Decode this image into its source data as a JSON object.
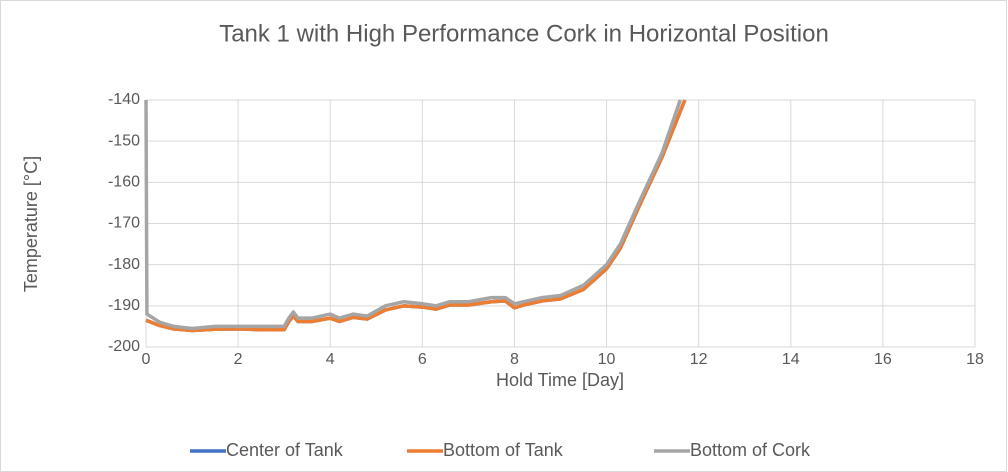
{
  "chart_data": {
    "type": "line",
    "title": "Tank 1 with High Performance Cork in Horizontal Position",
    "x_label": "Hold Time [Day]",
    "y_label": "Temperature [°C]",
    "xlim": [
      0,
      18
    ],
    "xticks": [
      0,
      2,
      4,
      6,
      8,
      10,
      12,
      14,
      16,
      18
    ],
    "ylim": [
      -200,
      -140
    ],
    "yticks": [
      -200,
      -190,
      -180,
      -170,
      -160,
      -150,
      -140
    ],
    "grid": true,
    "legend": "bottom",
    "series": [
      {
        "name": "Center of Tank",
        "color": "#4472c4",
        "x": [
          0,
          0.3,
          0.6,
          1,
          1.5,
          2,
          2.5,
          3,
          3.1,
          3.2,
          3.3,
          3.6,
          4,
          4.2,
          4.5,
          4.8,
          5.2,
          5.6,
          6,
          6.3,
          6.6,
          7,
          7.5,
          7.8,
          8,
          8.2,
          8.6,
          9,
          9.5,
          10,
          10.3,
          10.7,
          11.2,
          11.7
        ],
        "values": [
          -193.5,
          -194.8,
          -195.6,
          -196,
          -195.7,
          -195.6,
          -195.8,
          -195.8,
          -193.8,
          -192.5,
          -193.8,
          -193.8,
          -193,
          -193.8,
          -192.8,
          -193.2,
          -191,
          -190,
          -190.3,
          -190.8,
          -189.8,
          -189.8,
          -189,
          -188.8,
          -190.5,
          -189.8,
          -188.8,
          -188.3,
          -186,
          -181,
          -176,
          -166,
          -154,
          -140
        ]
      },
      {
        "name": "Bottom of Tank",
        "color": "#ed7d31",
        "x": [
          0,
          0.3,
          0.6,
          1,
          1.5,
          2,
          2.5,
          3,
          3.1,
          3.2,
          3.3,
          3.6,
          4,
          4.2,
          4.5,
          4.8,
          5.2,
          5.6,
          6,
          6.3,
          6.6,
          7,
          7.5,
          7.8,
          8,
          8.2,
          8.6,
          9,
          9.5,
          10,
          10.3,
          10.7,
          11.2,
          11.7
        ],
        "values": [
          -193.5,
          -194.8,
          -195.6,
          -196,
          -195.7,
          -195.6,
          -195.8,
          -195.8,
          -193.8,
          -192.5,
          -193.8,
          -193.8,
          -193,
          -193.8,
          -192.8,
          -193.2,
          -191,
          -190,
          -190.3,
          -190.8,
          -189.8,
          -189.8,
          -189,
          -188.8,
          -190.5,
          -189.8,
          -188.8,
          -188.3,
          -186,
          -181,
          -176,
          -166,
          -154,
          -140
        ]
      },
      {
        "name": "Bottom of Cork",
        "color": "#a5a5a5",
        "x": [
          0,
          0.02,
          0.3,
          0.6,
          1,
          1.5,
          2,
          2.5,
          3,
          3.1,
          3.2,
          3.3,
          3.6,
          4,
          4.2,
          4.5,
          4.8,
          5.2,
          5.6,
          6,
          6.3,
          6.6,
          7,
          7.5,
          7.8,
          8,
          8.2,
          8.6,
          9,
          9.5,
          10,
          10.3,
          10.7,
          11.2,
          11.6
        ],
        "values": [
          -140,
          -192,
          -194,
          -195,
          -195.5,
          -195,
          -195,
          -195,
          -195,
          -193,
          -191.5,
          -193,
          -193,
          -192,
          -193,
          -192,
          -192.5,
          -190,
          -189,
          -189.5,
          -190,
          -189,
          -189,
          -188,
          -188,
          -189.5,
          -189,
          -188,
          -187.5,
          -185,
          -180,
          -175,
          -165,
          -153,
          -140
        ]
      }
    ]
  }
}
